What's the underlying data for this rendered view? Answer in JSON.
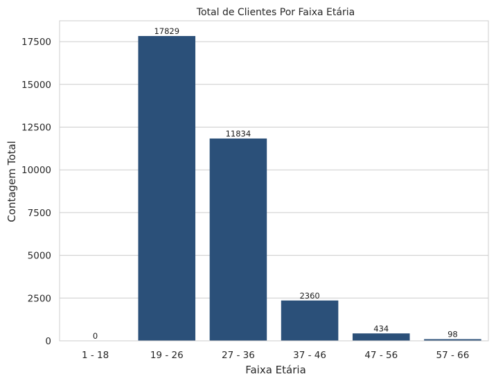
{
  "chart_data": {
    "type": "bar",
    "title": "Total de Clientes Por Faixa Etária",
    "xlabel": "Faixa Etária",
    "ylabel": "Contagem Total",
    "categories": [
      "1 - 18",
      "19 - 26",
      "27 - 36",
      "37 - 46",
      "47 - 56",
      "57 - 66"
    ],
    "values": [
      0,
      17829,
      11834,
      2360,
      434,
      98
    ],
    "ylim": [
      0,
      18720
    ],
    "yticks": [
      0,
      2500,
      5000,
      7500,
      10000,
      12500,
      15000,
      17500
    ],
    "grid": true,
    "legend": "none",
    "bar_color": "#2b5079",
    "grid_color": "#cccccc",
    "axes_edge_color": "#cccccc"
  }
}
